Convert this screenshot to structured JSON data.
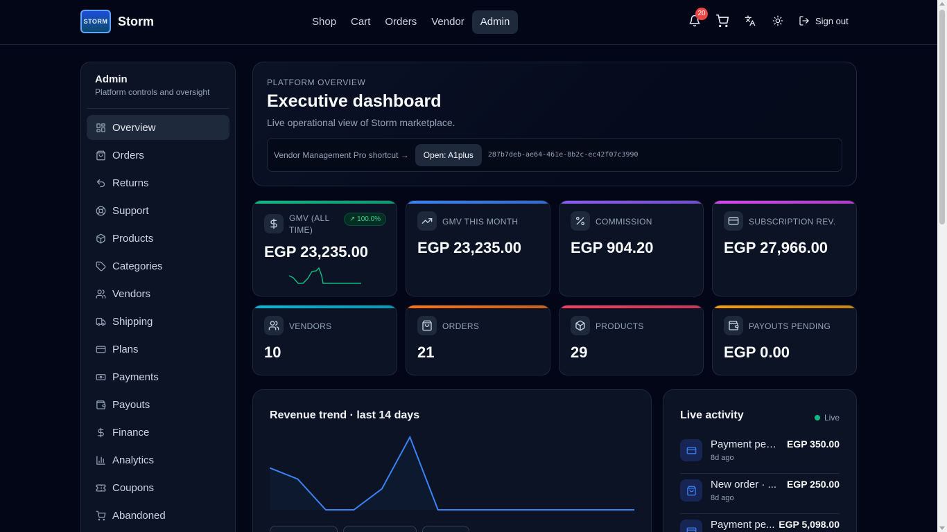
{
  "brand": {
    "name": "Storm",
    "logo_text": "STORM"
  },
  "nav": {
    "shop": "Shop",
    "cart": "Cart",
    "orders": "Orders",
    "vendor": "Vendor",
    "admin": "Admin"
  },
  "header": {
    "notifications_count": "20",
    "sign_out": "Sign out"
  },
  "sidebar": {
    "title": "Admin",
    "subtitle": "Platform controls and oversight",
    "items": [
      {
        "label": "Overview",
        "icon": "dashboard-icon"
      },
      {
        "label": "Orders",
        "icon": "bag-icon"
      },
      {
        "label": "Returns",
        "icon": "undo-icon"
      },
      {
        "label": "Support",
        "icon": "lifebuoy-icon"
      },
      {
        "label": "Products",
        "icon": "box-icon"
      },
      {
        "label": "Categories",
        "icon": "tag-icon"
      },
      {
        "label": "Vendors",
        "icon": "users-icon"
      },
      {
        "label": "Shipping",
        "icon": "truck-icon"
      },
      {
        "label": "Plans",
        "icon": "card-icon"
      },
      {
        "label": "Payments",
        "icon": "banknote-icon"
      },
      {
        "label": "Payouts",
        "icon": "wallet-icon"
      },
      {
        "label": "Finance",
        "icon": "dollar-icon"
      },
      {
        "label": "Analytics",
        "icon": "bar-chart-icon"
      },
      {
        "label": "Coupons",
        "icon": "ticket-icon"
      },
      {
        "label": "Abandoned",
        "icon": "cart-icon"
      }
    ]
  },
  "hero": {
    "kicker": "PLATFORM OVERVIEW",
    "title": "Executive dashboard",
    "description": "Live operational view of Storm marketplace.",
    "shortcut_label": "Vendor Management Pro shortcut →",
    "shortcut_button": "Open: A1plus",
    "shortcut_id": "287b7deb-ae64-461e-8b2c-ec42f07c3990"
  },
  "kpis": [
    {
      "label": "GMV (ALL TIME)",
      "value": "EGP 23,235.00",
      "trend": "↗ 100.0%",
      "icon": "dollar-icon",
      "accent": "#10b981"
    },
    {
      "label": "GMV THIS MONTH",
      "value": "EGP 23,235.00",
      "icon": "trending-up-icon",
      "accent": "#3b82f6"
    },
    {
      "label": "COMMISSION",
      "value": "EGP 904.20",
      "icon": "percent-icon",
      "accent": "#8b5cf6"
    },
    {
      "label": "SUBSCRIPTION REV.",
      "value": "EGP 27,966.00",
      "icon": "card-icon",
      "accent": "#d946ef"
    },
    {
      "label": "VENDORS",
      "value": "10",
      "icon": "users-icon",
      "accent": "#06b6d4"
    },
    {
      "label": "ORDERS",
      "value": "21",
      "icon": "bag-icon",
      "accent": "#f97316"
    },
    {
      "label": "PRODUCTS",
      "value": "29",
      "icon": "box-icon",
      "accent": "#f43f5e"
    },
    {
      "label": "PAYOUTS PENDING",
      "value": "EGP 0.00",
      "icon": "wallet-icon",
      "accent": "#f59e0b"
    }
  ],
  "revenue": {
    "title": "Revenue trend · last 14 days",
    "values": [
      60,
      44,
      0,
      0,
      30,
      104,
      0,
      0,
      0,
      0,
      0,
      0,
      0,
      0
    ],
    "color": "#3b82f6"
  },
  "live": {
    "title": "Live activity",
    "tag": "Live",
    "items": [
      {
        "title": "Payment pen...",
        "time": "8d ago",
        "amount": "EGP 350.00",
        "icon": "card-icon"
      },
      {
        "title": "New order · ...",
        "time": "8d ago",
        "amount": "EGP 250.00",
        "icon": "bag-icon"
      },
      {
        "title": "Payment pe...",
        "time": "",
        "amount": "EGP 5,098.00",
        "icon": "card-icon"
      }
    ]
  }
}
